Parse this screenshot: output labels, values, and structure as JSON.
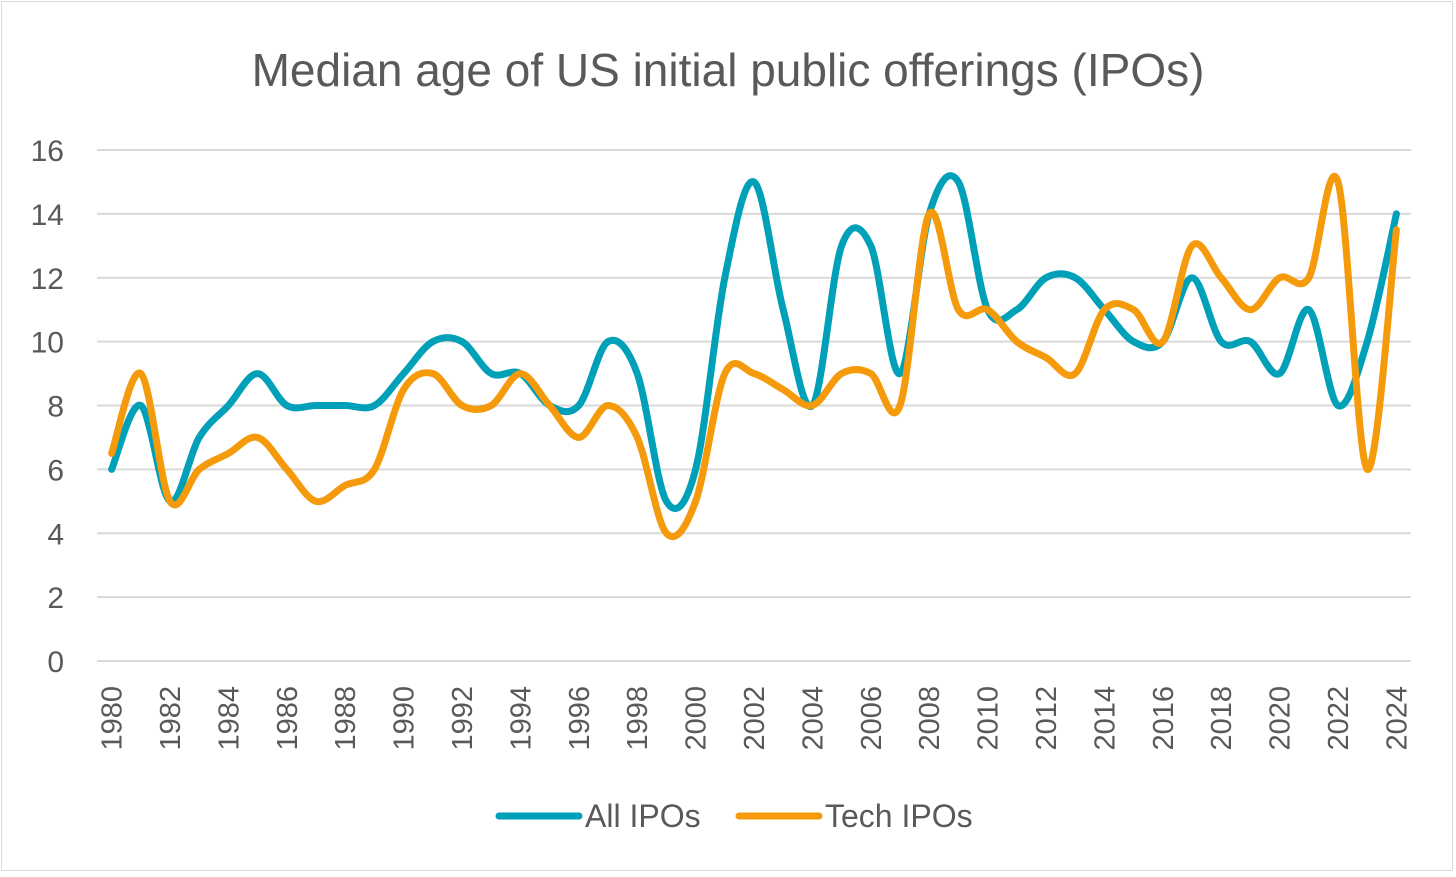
{
  "chart_data": {
    "type": "line",
    "title": "Median age of US initial public offerings (IPOs)",
    "xlabel": "",
    "ylabel": "",
    "ylim": [
      0,
      16
    ],
    "yticks": [
      0,
      2,
      4,
      6,
      8,
      10,
      12,
      14,
      16
    ],
    "grid": true,
    "legend_position": "bottom",
    "x": [
      1980,
      1981,
      1982,
      1983,
      1984,
      1985,
      1986,
      1987,
      1988,
      1989,
      1990,
      1991,
      1992,
      1993,
      1994,
      1995,
      1996,
      1997,
      1998,
      1999,
      2000,
      2001,
      2002,
      2003,
      2004,
      2005,
      2006,
      2007,
      2008,
      2009,
      2010,
      2011,
      2012,
      2013,
      2014,
      2015,
      2016,
      2017,
      2018,
      2019,
      2020,
      2021,
      2022,
      2023,
      2024
    ],
    "xtick_labels": [
      "1980",
      "1982",
      "1984",
      "1986",
      "1988",
      "1990",
      "1992",
      "1994",
      "1996",
      "1998",
      "2000",
      "2002",
      "2004",
      "2006",
      "2008",
      "2010",
      "2012",
      "2014",
      "2016",
      "2018",
      "2020",
      "2022",
      "2024"
    ],
    "series": [
      {
        "name": "All IPOs",
        "color": "#00a0b8",
        "values": [
          6,
          8,
          5,
          7,
          8,
          9,
          8,
          8,
          8,
          8,
          9,
          10,
          10,
          9,
          9,
          8,
          8,
          10,
          9,
          5,
          6,
          12,
          15,
          11,
          8,
          13,
          13,
          9,
          14,
          15,
          11,
          11,
          12,
          12,
          11,
          10,
          10,
          12,
          10,
          10,
          9,
          11,
          8,
          10,
          14
        ]
      },
      {
        "name": "Tech IPOs",
        "color": "#f59a0b",
        "values": [
          6.5,
          9,
          5,
          6,
          6.5,
          7,
          6,
          5,
          5.5,
          6,
          8.5,
          9,
          8,
          8,
          9,
          8,
          7,
          8,
          7,
          4,
          5,
          9,
          9,
          8.5,
          8,
          9,
          9,
          8,
          14,
          11,
          11,
          10,
          9.5,
          9,
          11,
          11,
          10,
          13,
          12,
          11,
          12,
          12,
          15,
          6,
          13.5
        ]
      }
    ]
  }
}
